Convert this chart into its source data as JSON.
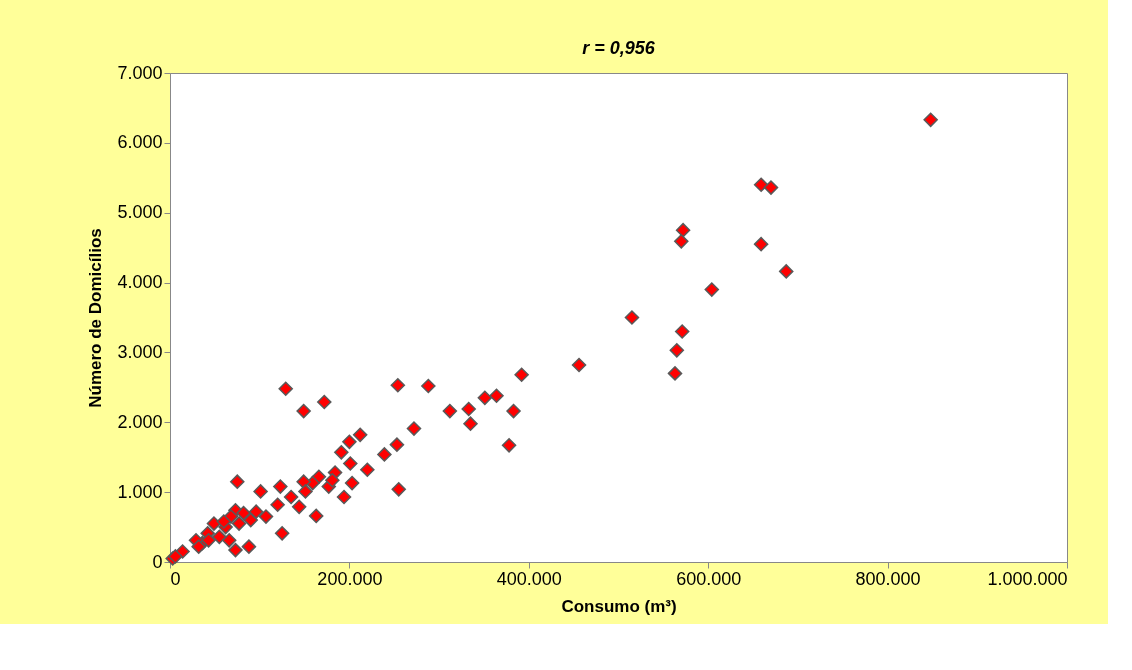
{
  "chart_data": {
    "type": "scatter",
    "title": "r = 0,956",
    "xlabel": "Consumo (m³)",
    "ylabel": "Número de Domicílios",
    "xlim": [
      0,
      1000000
    ],
    "ylim": [
      0,
      7000
    ],
    "xticks": [
      0,
      {
        "value": 200000,
        "label": "200.000"
      },
      {
        "value": 400000,
        "label": "400.000"
      },
      {
        "value": 600000,
        "label": "600.000"
      },
      {
        "value": 800000,
        "label": "800.000"
      },
      {
        "value": 1000000,
        "label": "1.000.000"
      }
    ],
    "yticks": [
      0,
      {
        "value": 1000,
        "label": "1.000"
      },
      {
        "value": 2000,
        "label": "2.000"
      },
      {
        "value": 3000,
        "label": "3.000"
      },
      {
        "value": 4000,
        "label": "4.000"
      },
      {
        "value": 5000,
        "label": "5.000"
      },
      {
        "value": 6000,
        "label": "6.000"
      },
      {
        "value": 7000,
        "label": "7.000"
      }
    ],
    "grid": false,
    "marker": "diamond",
    "series": [
      {
        "color": "#ff0000",
        "x": [
          848000,
          659000,
          670000,
          572000,
          570000,
          659000,
          687000,
          604000,
          515000,
          571000,
          565000,
          563000,
          456000,
          392000,
          254000,
          288000,
          312000,
          333000,
          335000,
          351000,
          364000,
          383000,
          378000,
          272000,
          253000,
          239000,
          255000,
          129000,
          149000,
          172000,
          212000,
          200000,
          191000,
          201000,
          220000,
          203000,
          194000,
          184000,
          177000,
          166000,
          159000,
          149000,
          163000,
          144000,
          135000,
          123000,
          120000,
          125000,
          101000,
          75000,
          107000,
          88000,
          73000,
          66000,
          77000,
          90000,
          73000,
          62000,
          55000,
          49000,
          36000,
          29000,
          42000,
          14000,
          3000,
          6000,
          82000,
          96000,
          151000,
          181000,
          68000,
          60000,
          43000,
          32000
        ],
        "values": [
          6330,
          5400,
          5360,
          4750,
          4590,
          4550,
          4160,
          3900,
          3500,
          3300,
          3030,
          2700,
          2820,
          2680,
          2530,
          2520,
          2160,
          2190,
          1980,
          2350,
          2380,
          2160,
          1670,
          1910,
          1680,
          1540,
          1040,
          2480,
          2160,
          2290,
          1820,
          1720,
          1570,
          1410,
          1320,
          1130,
          930,
          1280,
          1080,
          1220,
          1130,
          1150,
          660,
          790,
          930,
          1080,
          820,
          410,
          1010,
          1150,
          650,
          220,
          170,
          310,
          550,
          600,
          740,
          500,
          360,
          550,
          270,
          310,
          410,
          150,
          50,
          80,
          700,
          720,
          1010,
          1170,
          650,
          580,
          310,
          220
        ]
      }
    ]
  }
}
